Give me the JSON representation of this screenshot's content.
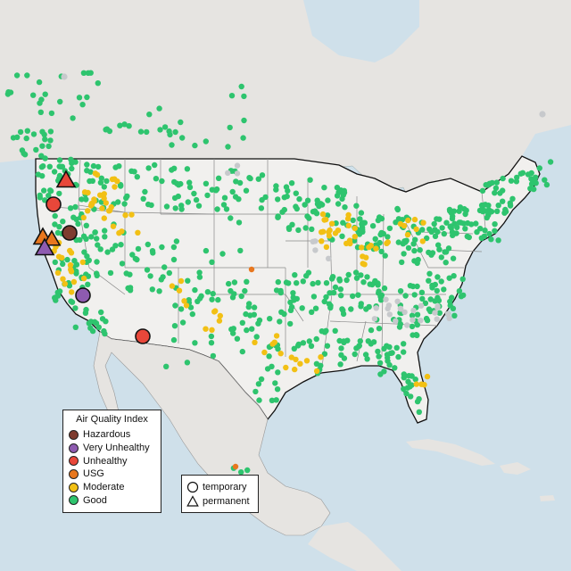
{
  "legend": {
    "title": "Air Quality Index",
    "categories": [
      {
        "key": "hazardous",
        "label": "Hazardous",
        "color": "#7e3b2f"
      },
      {
        "key": "very_unhealthy",
        "label": "Very Unhealthy",
        "color": "#8e5bb0"
      },
      {
        "key": "unhealthy",
        "label": "Unhealthy",
        "color": "#e8473a"
      },
      {
        "key": "usg",
        "label": "USG",
        "color": "#e8771e"
      },
      {
        "key": "moderate",
        "label": "Moderate",
        "color": "#f2c014"
      },
      {
        "key": "good",
        "label": "Good",
        "color": "#2ec46e"
      }
    ]
  },
  "monitor_types": {
    "temporary_label": "temporary",
    "permanent_label": "permanent"
  },
  "colors": {
    "ocean": "#cfe0ea",
    "land": "#ebe9e6",
    "us_land": "#f1f0ee",
    "no_data_gray": "#c7c9cc"
  }
}
